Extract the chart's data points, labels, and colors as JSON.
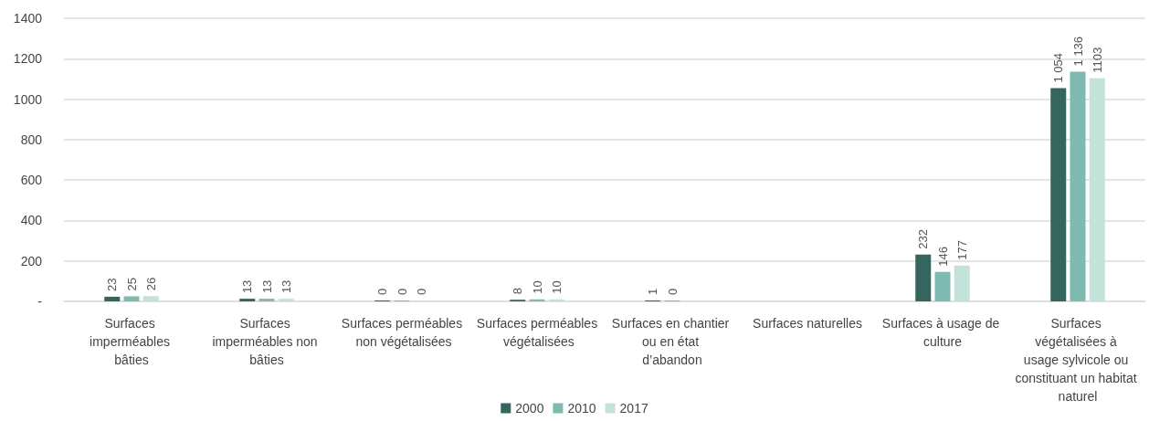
{
  "chart_data": {
    "type": "bar",
    "categories": [
      "Surfaces imperméables bâties",
      "Surfaces imperméables non bâties",
      "Surfaces perméables non végétalisées",
      "Surfaces perméables végétalisées",
      "Surfaces en chantier ou en état d’abandon",
      "Surfaces naturelles",
      "Surfaces à usage de culture",
      "Surfaces végétalisées à usage sylvicole ou constituant un habitat naturel"
    ],
    "series": [
      {
        "name": "2000",
        "color": "#35655c",
        "values": [
          23,
          13,
          0,
          8,
          1,
          null,
          232,
          1054
        ],
        "value_labels": [
          "23",
          "13",
          "0",
          "8",
          "1",
          null,
          "232",
          "1 054"
        ]
      },
      {
        "name": "2010",
        "color": "#7fbab0",
        "values": [
          25,
          13,
          0,
          10,
          0,
          null,
          146,
          1136
        ],
        "value_labels": [
          "25",
          "13",
          "0",
          "10",
          "0",
          null,
          "146",
          "1 136"
        ]
      },
      {
        "name": "2017",
        "color": "#c3e2da",
        "values": [
          26,
          13,
          0,
          10,
          null,
          null,
          177,
          1103
        ],
        "value_labels": [
          "26",
          "13",
          "0",
          "10",
          null,
          null,
          "177",
          "1103"
        ]
      }
    ],
    "ylim": [
      0,
      1400
    ],
    "yticks": [
      {
        "value": 0,
        "label": "-"
      },
      200,
      400,
      600,
      800,
      1000,
      1200,
      1400
    ],
    "grid": "y",
    "legend": "bottom"
  }
}
